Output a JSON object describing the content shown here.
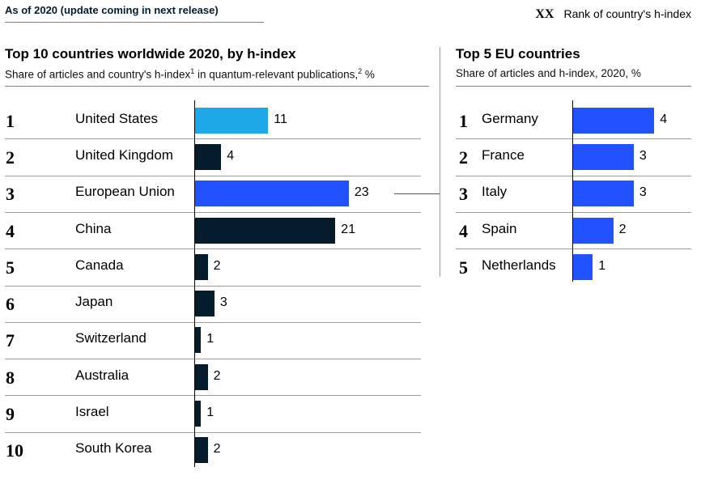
{
  "header": {
    "note": "As of 2020 (update coming in next release)",
    "legend_key": "XX",
    "legend_text": "Rank of country's h-index"
  },
  "colors": {
    "light_blue": "#1fa8e8",
    "blue": "#2251ff",
    "navy": "#051c2c"
  },
  "chart_data": [
    {
      "type": "bar",
      "orientation": "horizontal",
      "title": "Top 10 countries worldwide 2020, by h-index",
      "subtitle": "Share of articles and country's h-index",
      "subtitle_sup1": "1",
      "subtitle_mid": " in quantum-relevant publications,",
      "subtitle_sup2": "2",
      "subtitle_end": " %",
      "ranks": [
        "1",
        "2",
        "3",
        "4",
        "5",
        "6",
        "7",
        "8",
        "9",
        "10"
      ],
      "categories": [
        "United States",
        "United Kingdom",
        "European Union",
        "China",
        "Canada",
        "Japan",
        "Switzerland",
        "Australia",
        "Israel",
        "South Korea"
      ],
      "values": [
        11,
        4,
        23,
        21,
        2,
        3,
        1,
        2,
        1,
        2
      ],
      "bar_colors": [
        "#1fa8e8",
        "#051c2c",
        "#2251ff",
        "#051c2c",
        "#051c2c",
        "#051c2c",
        "#051c2c",
        "#051c2c",
        "#051c2c",
        "#051c2c"
      ]
    },
    {
      "type": "bar",
      "orientation": "horizontal",
      "title": "Top 5 EU countries",
      "subtitle": "Share of articles and h-index, 2020, %",
      "ranks": [
        "1",
        "2",
        "3",
        "4",
        "5"
      ],
      "categories": [
        "Germany",
        "France",
        "Italy",
        "Spain",
        "Netherlands"
      ],
      "values": [
        4,
        3,
        3,
        2,
        1
      ],
      "bar_colors": [
        "#2251ff",
        "#2251ff",
        "#2251ff",
        "#2251ff",
        "#2251ff"
      ]
    }
  ]
}
